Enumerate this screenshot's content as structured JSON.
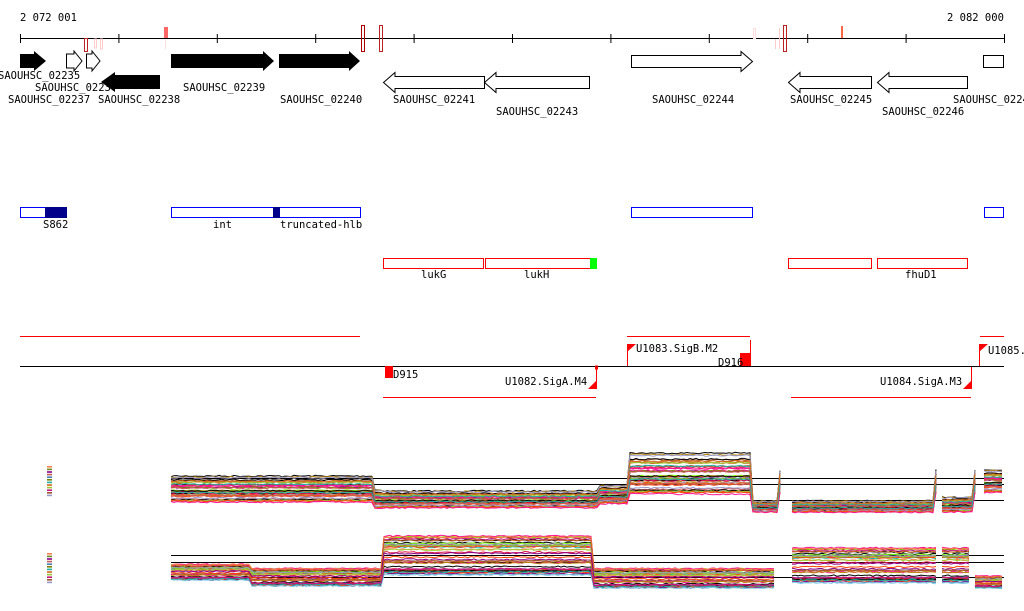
{
  "ruler": {
    "start_label": "2 072 001",
    "end_label": "2 082 000"
  },
  "genes": [
    {
      "label": "SAOUHSC_02235"
    },
    {
      "label": "SAOUHSC_0223"
    },
    {
      "label": "SAOUHSC_02237"
    },
    {
      "label": "SAOUHSC_02238"
    },
    {
      "label": "SAOUHSC_02239"
    },
    {
      "label": "SAOUHSC_02240"
    },
    {
      "label": "SAOUHSC_02241"
    },
    {
      "label": "SAOUHSC_02243"
    },
    {
      "label": "SAOUHSC_02244"
    },
    {
      "label": "SAOUHSC_02245"
    },
    {
      "label": "SAOUHSC_02246"
    },
    {
      "label": "SAOUHSC_0224"
    }
  ],
  "features_blue": [
    {
      "label": "S862"
    },
    {
      "label": "int"
    },
    {
      "label": "truncated-hlb"
    }
  ],
  "features_red": [
    {
      "label": "lukG"
    },
    {
      "label": "lukH"
    },
    {
      "label": "fhuD1"
    }
  ],
  "regulatory": [
    {
      "label": "D915"
    },
    {
      "label": "U1082.SigA.M4"
    },
    {
      "label": "U1083.SigB.M2"
    },
    {
      "label": "D916"
    },
    {
      "label": "U1084.SigA.M3"
    },
    {
      "label": "U1085."
    }
  ],
  "colors": {
    "gene_black": "#000000",
    "feature_blue": "#0000ff",
    "feature_dark_blue": "#00008b",
    "feature_red": "#ff0000",
    "highlight_green": "#00ff00"
  }
}
